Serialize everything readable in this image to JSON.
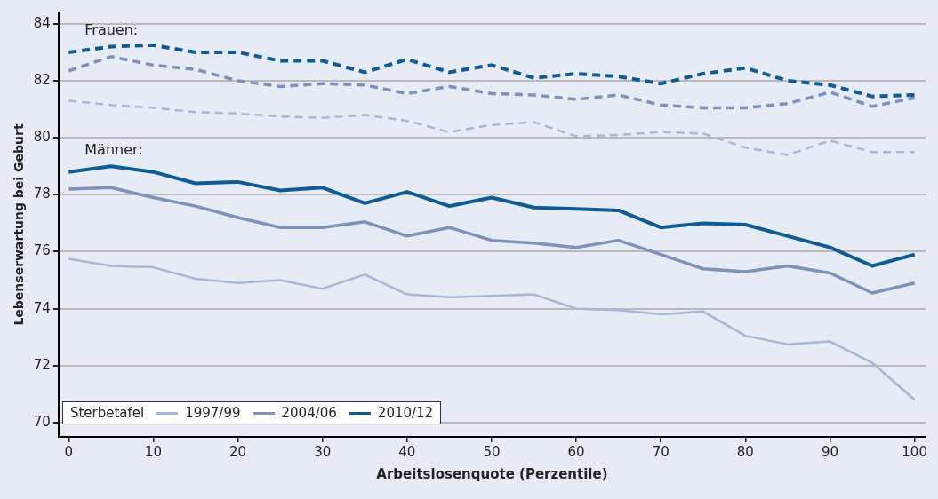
{
  "chart_data": {
    "type": "line",
    "xlabel": "Arbeitslosenquote (Perzentile)",
    "ylabel": "Lebenserwartung bei Geburt",
    "legend_title": "Sterbetafel",
    "legend": "bottom left",
    "grid": "y",
    "marker": "none",
    "x": [
      0,
      5,
      10,
      15,
      20,
      25,
      30,
      35,
      40,
      45,
      50,
      55,
      60,
      65,
      70,
      75,
      80,
      85,
      90,
      95,
      100
    ],
    "xlim": [
      -1.2,
      101.3
    ],
    "xticks": [
      0,
      10,
      20,
      30,
      40,
      50,
      60,
      70,
      80,
      90,
      100
    ],
    "ylim": [
      69.5,
      84.4
    ],
    "yticks": [
      70,
      72,
      74,
      76,
      78,
      80,
      82,
      84
    ],
    "annotations": [
      "Frauen:",
      "Männer:"
    ],
    "series": [
      {
        "color": "#a9b6d6",
        "line_style": "dashed",
        "values": [
          81.3,
          81.15,
          81.05,
          80.9,
          80.85,
          80.75,
          80.7,
          80.8,
          80.6,
          80.2,
          80.45,
          80.55,
          80.05,
          80.1,
          80.2,
          80.15,
          79.65,
          79.4,
          79.9,
          79.5,
          79.5
        ]
      },
      {
        "color": "#7f90bc",
        "line_style": "dashed",
        "values": [
          82.35,
          82.85,
          82.55,
          82.4,
          82.0,
          81.8,
          81.9,
          81.85,
          81.55,
          81.8,
          81.55,
          81.5,
          81.35,
          81.5,
          81.15,
          81.05,
          81.05,
          81.2,
          81.6,
          81.1,
          81.4
        ]
      },
      {
        "color": "#0f5b96",
        "line_style": "dashed",
        "values": [
          83.0,
          83.2,
          83.25,
          83.0,
          83.0,
          82.7,
          82.7,
          82.3,
          82.75,
          82.3,
          82.55,
          82.1,
          82.25,
          82.15,
          81.9,
          82.25,
          82.45,
          82.0,
          81.85,
          81.45,
          81.5
        ]
      },
      {
        "name": "1997/99",
        "color": "#a9b6d6",
        "line_style": "solid",
        "values": [
          75.75,
          75.5,
          75.45,
          75.05,
          74.9,
          75.0,
          74.7,
          75.2,
          74.5,
          74.4,
          74.45,
          74.5,
          74.0,
          73.95,
          73.8,
          73.9,
          73.05,
          72.75,
          72.85,
          72.1,
          70.8
        ]
      },
      {
        "name": "2004/06",
        "color": "#7f90bc",
        "line_style": "solid",
        "values": [
          78.2,
          78.25,
          77.9,
          77.6,
          77.2,
          76.85,
          76.85,
          77.05,
          76.55,
          76.85,
          76.4,
          76.3,
          76.15,
          76.4,
          75.9,
          75.4,
          75.3,
          75.5,
          75.25,
          74.55,
          74.9
        ]
      },
      {
        "name": "2010/12",
        "color": "#0f5b96",
        "line_style": "solid",
        "values": [
          78.8,
          79.0,
          78.8,
          78.4,
          78.45,
          78.15,
          78.25,
          77.7,
          78.1,
          77.6,
          77.9,
          77.55,
          77.5,
          77.45,
          76.85,
          77.0,
          76.95,
          76.55,
          76.15,
          75.5,
          75.9
        ]
      }
    ]
  }
}
